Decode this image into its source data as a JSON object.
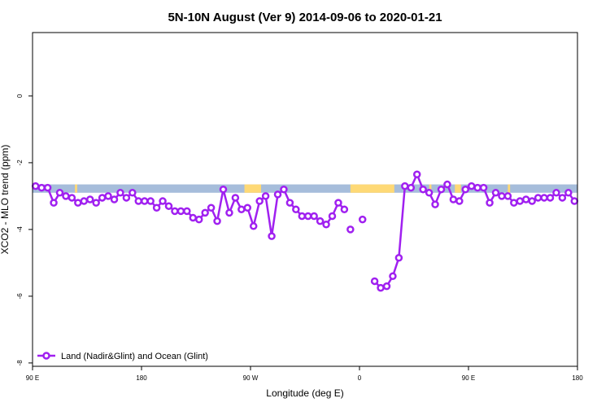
{
  "chart_data": {
    "type": "line",
    "title": "5N-10N August (Ver 9)   2014-09-06 to 2020-01-21",
    "xlabel": "Longitude (deg E)",
    "ylabel": "XCO2 - MLO trend (ppm)",
    "xlim": [
      90,
      450
    ],
    "ylim": [
      -8.1,
      1.9
    ],
    "x_ticks": [
      {
        "value": 90,
        "label": "90 E"
      },
      {
        "value": 162,
        "label": "180"
      },
      {
        "value": 234,
        "label": "90 W"
      },
      {
        "value": 306,
        "label": "0"
      },
      {
        "value": 378,
        "label": "90 E"
      },
      {
        "value": 450,
        "label": "180"
      }
    ],
    "y_ticks": [
      {
        "value": 0,
        "label": "0"
      },
      {
        "value": -2,
        "label": "-2"
      },
      {
        "value": -4,
        "label": "-4"
      },
      {
        "value": -6,
        "label": "-6"
      },
      {
        "value": -8,
        "label": "-8"
      }
    ],
    "land_mask": {
      "ocean_color": "#a6bddb",
      "land_color": "#fed976",
      "y_range": [
        -2.9,
        -2.65
      ],
      "land_spans": [
        [
          118,
          119.5
        ],
        [
          230,
          241
        ],
        [
          300,
          329
        ],
        [
          352,
          353.5
        ],
        [
          369,
          373
        ],
        [
          404,
          405.5
        ]
      ]
    },
    "legend": {
      "position": "bottom-left",
      "label": "Land (Nadir&Glint) and Ocean (Glint)"
    },
    "series": [
      {
        "name": "Land (Nadir&Glint) and Ocean (Glint)",
        "color": "#a020f0",
        "segments": [
          {
            "x": [
              92,
              96,
              100,
              104,
              108,
              112,
              116,
              120,
              124,
              128,
              132,
              136,
              140,
              144,
              148,
              152,
              156,
              160,
              164,
              168,
              172,
              176,
              180,
              184,
              188,
              192,
              196,
              200,
              204,
              208,
              212,
              216,
              220,
              224,
              228,
              232,
              236,
              240,
              244,
              248,
              252,
              256,
              260,
              264,
              268,
              272,
              276,
              280,
              284,
              288,
              292,
              296
            ],
            "y": [
              -2.7,
              -2.75,
              -2.75,
              -3.2,
              -2.9,
              -3.0,
              -3.05,
              -3.2,
              -3.15,
              -3.1,
              -3.2,
              -3.05,
              -3.0,
              -3.1,
              -2.9,
              -3.05,
              -2.9,
              -3.15,
              -3.15,
              -3.15,
              -3.35,
              -3.15,
              -3.3,
              -3.45,
              -3.45,
              -3.45,
              -3.65,
              -3.7,
              -3.5,
              -3.35,
              -3.75,
              -2.8,
              -3.5,
              -3.05,
              -3.4,
              -3.35,
              -3.9,
              -3.15,
              -3.0,
              -4.2,
              -2.95,
              -2.8,
              -3.2,
              -3.4,
              -3.6,
              -3.6,
              -3.6,
              -3.75,
              -3.85,
              -3.6,
              -3.2,
              -3.4
            ]
          },
          {
            "x": [
              300
            ],
            "y": [
              -4.0
            ]
          },
          {
            "x": [
              308
            ],
            "y": [
              -3.7
            ]
          },
          {
            "x": [
              316,
              320,
              324,
              328,
              332,
              336,
              340,
              344,
              348,
              352,
              356,
              360,
              364,
              368,
              372,
              376,
              380,
              384,
              388,
              392,
              396,
              400,
              404,
              408,
              412,
              416,
              420,
              424,
              428,
              432,
              436,
              440,
              444,
              448
            ],
            "y": [
              -5.55,
              -5.75,
              -5.7,
              -5.4,
              -4.85,
              -2.7,
              -2.75,
              -2.35,
              -2.8,
              -2.9,
              -3.25,
              -2.8,
              -2.65,
              -3.1,
              -3.15,
              -2.8,
              -2.7,
              -2.75,
              -2.75,
              -3.2,
              -2.9,
              -3.0,
              -3.0,
              -3.2,
              -3.15,
              -3.1,
              -3.15,
              -3.05,
              -3.05,
              -3.05,
              -2.9,
              -3.05,
              -2.9,
              -3.15
            ]
          }
        ]
      }
    ]
  }
}
